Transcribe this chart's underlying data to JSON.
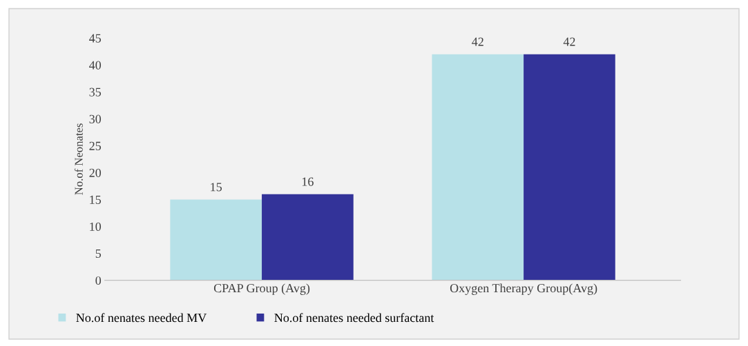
{
  "chart_data": {
    "type": "bar",
    "ylabel": "No.of Neonates",
    "categories": [
      "CPAP Group (Avg)",
      "Oxygen Therapy Group(Avg)"
    ],
    "series": [
      {
        "name": "No.of nenates needed MV",
        "color": "#b7e1e8",
        "values": [
          15,
          42
        ]
      },
      {
        "name": "No.of nenates needed surfactant",
        "color": "#333399",
        "values": [
          16,
          42
        ]
      }
    ],
    "ylim": [
      0,
      45
    ],
    "yticks": [
      0,
      5,
      10,
      15,
      20,
      25,
      30,
      35,
      40,
      45
    ],
    "data_labels": true,
    "grid": false,
    "legend": "bottom left"
  }
}
